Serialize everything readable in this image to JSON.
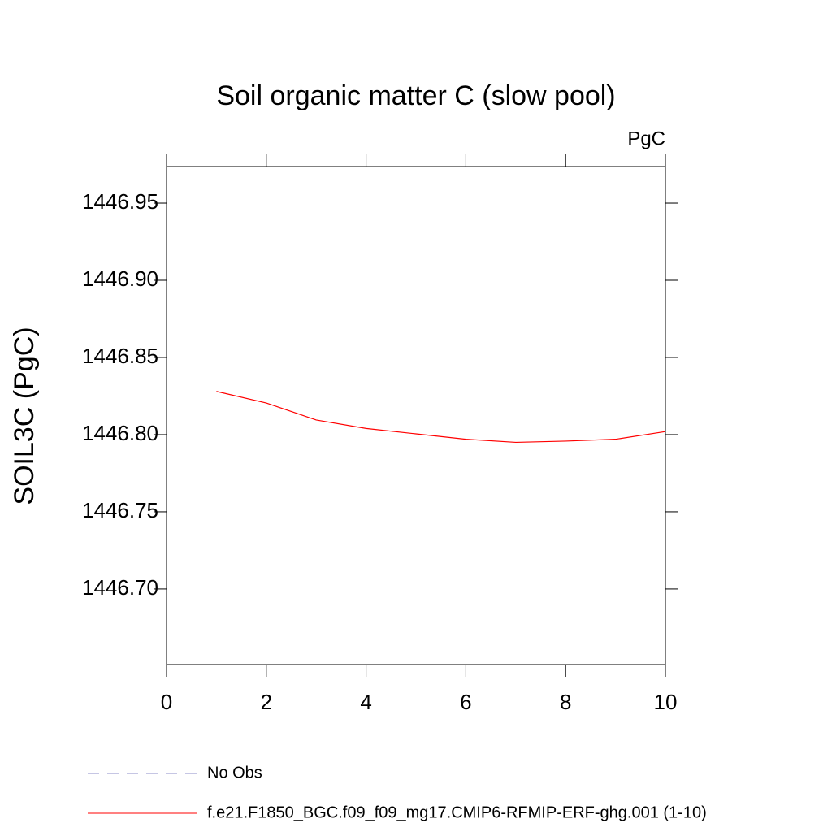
{
  "chart_data": {
    "type": "line",
    "title": "Soil organic matter C (slow pool)",
    "units": "PgC",
    "y_label": "SOIL3C  (PgC)",
    "x": [
      1,
      2,
      3,
      4,
      5,
      6,
      7,
      8,
      9,
      10
    ],
    "series": [
      {
        "name": "No Obs",
        "color": "#8c8cc8",
        "dashed": true,
        "values": [
          null,
          null,
          null,
          null,
          null,
          null,
          null,
          null,
          null,
          null
        ]
      },
      {
        "name": "f.e21.F1850_BGC.f09_f09_mg17.CMIP6-RFMIP-ERF-ghg.001 (1-10)",
        "color": "#ff0000",
        "dashed": false,
        "values": [
          1446.828,
          1446.8205,
          1446.8095,
          1446.804,
          1446.8005,
          1446.797,
          1446.795,
          1446.7958,
          1446.797,
          1446.802
        ]
      }
    ],
    "xlim": [
      0,
      10
    ],
    "xticks": [
      0,
      2,
      4,
      6,
      8,
      10
    ],
    "ylim": [
      1446.651,
      1446.9737
    ],
    "yticks": [
      {
        "value": 1446.7,
        "label": "1446.70"
      },
      1446.75,
      {
        "value": 1446.8,
        "label": "1446.80"
      },
      1446.85,
      {
        "value": 1446.9,
        "label": "1446.90"
      },
      1446.95
    ],
    "grid": false
  }
}
